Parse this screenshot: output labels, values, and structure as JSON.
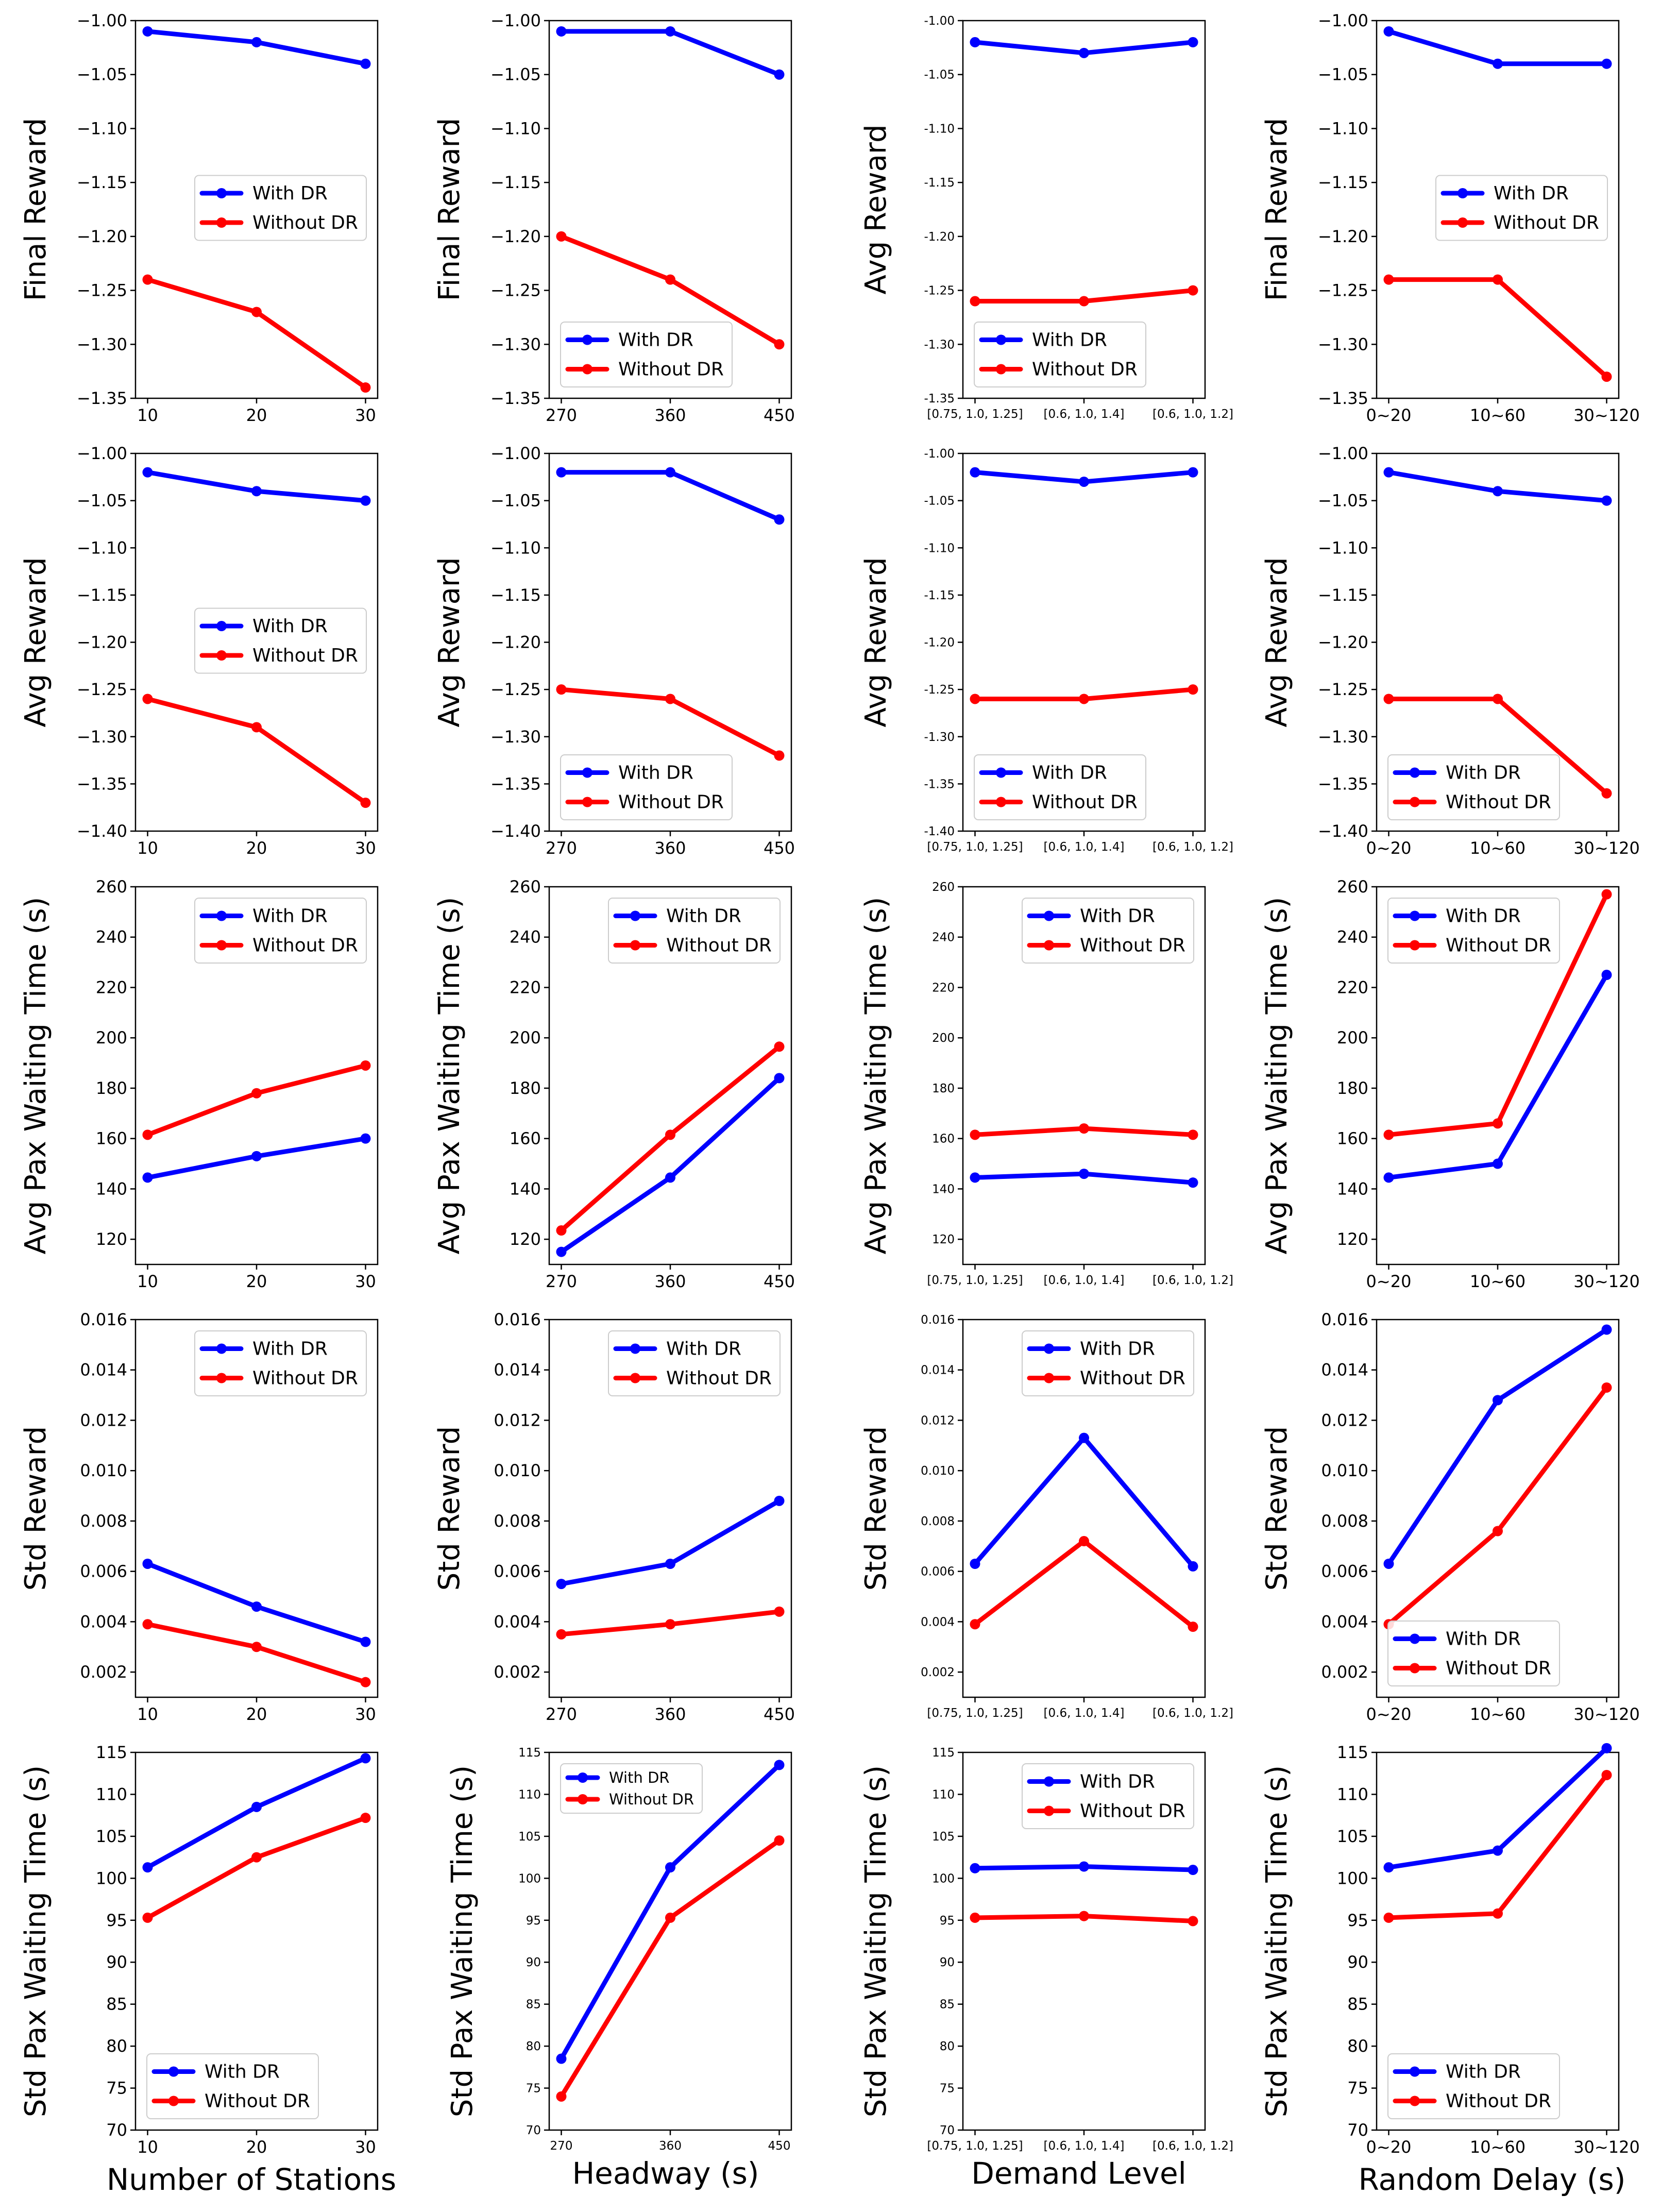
{
  "series_styles": [
    {
      "name": "With DR",
      "color": "#0000ff"
    },
    {
      "name": "Without DR",
      "color": "#ff0000"
    }
  ],
  "x_axes": {
    "stations": {
      "xlabel": "Number of Stations",
      "categories": [
        "10",
        "20",
        "30"
      ]
    },
    "headway": {
      "xlabel": "Headway (s)",
      "categories": [
        "270",
        "360",
        "450"
      ]
    },
    "demand": {
      "xlabel": "Demand Level",
      "categories": [
        "[0.75, 1.0, 1.25]",
        "[0.6, 1.0, 1.4]",
        "[0.6, 1.0, 1.2]"
      ]
    },
    "delay": {
      "xlabel": "Random Delay (s)",
      "categories": [
        "0~20",
        "10~60",
        "30~120"
      ]
    }
  },
  "chart_data": [
    {
      "type": "line",
      "row": 0,
      "col": 0,
      "ylabel": "Final Reward",
      "ylim": [
        -1.35,
        -1.0
      ],
      "yticks": [
        -1.0,
        -1.05,
        -1.1,
        -1.15,
        -1.2,
        -1.25,
        -1.3,
        -1.35
      ],
      "ytick_labels": [
        "−1.00",
        "−1.05",
        "−1.10",
        "−1.15",
        "−1.20",
        "−1.25",
        "−1.30",
        "−1.35"
      ],
      "legend_loc": "center-right",
      "categories": [
        "10",
        "20",
        "30"
      ],
      "series": [
        {
          "name": "With DR",
          "values": [
            -1.01,
            -1.02,
            -1.04
          ]
        },
        {
          "name": "Without DR",
          "values": [
            -1.24,
            -1.27,
            -1.34
          ]
        }
      ]
    },
    {
      "type": "line",
      "row": 0,
      "col": 1,
      "ylabel": "Final Reward",
      "ylim": [
        -1.35,
        -1.0
      ],
      "yticks": [
        -1.0,
        -1.05,
        -1.1,
        -1.15,
        -1.2,
        -1.25,
        -1.3,
        -1.35
      ],
      "ytick_labels": [
        "−1.00",
        "−1.05",
        "−1.10",
        "−1.15",
        "−1.20",
        "−1.25",
        "−1.30",
        "−1.35"
      ],
      "legend_loc": "lower-left",
      "categories": [
        "270",
        "360",
        "450"
      ],
      "series": [
        {
          "name": "With DR",
          "values": [
            -1.01,
            -1.01,
            -1.05
          ]
        },
        {
          "name": "Without DR",
          "values": [
            -1.2,
            -1.24,
            -1.3
          ]
        }
      ]
    },
    {
      "type": "line",
      "row": 0,
      "col": 2,
      "ylabel": "Avg Reward",
      "ylim": [
        -1.35,
        -1.0
      ],
      "yticks": [
        -1.0,
        -1.05,
        -1.1,
        -1.15,
        -1.2,
        -1.25,
        -1.3,
        -1.35
      ],
      "ytick_labels": [
        "-1.00",
        "-1.05",
        "-1.10",
        "-1.15",
        "-1.20",
        "-1.25",
        "-1.30",
        "-1.35"
      ],
      "small_ticks": true,
      "legend_loc": "lower-left",
      "categories": [
        "[0.75, 1.0, 1.25]",
        "[0.6, 1.0, 1.4]",
        "[0.6, 1.0, 1.2]"
      ],
      "series": [
        {
          "name": "With DR",
          "values": [
            -1.02,
            -1.03,
            -1.02
          ]
        },
        {
          "name": "Without DR",
          "values": [
            -1.26,
            -1.26,
            -1.25
          ]
        }
      ]
    },
    {
      "type": "line",
      "row": 0,
      "col": 3,
      "ylabel": "Final Reward",
      "ylim": [
        -1.35,
        -1.0
      ],
      "yticks": [
        -1.0,
        -1.05,
        -1.1,
        -1.15,
        -1.2,
        -1.25,
        -1.3,
        -1.35
      ],
      "ytick_labels": [
        "−1.00",
        "−1.05",
        "−1.10",
        "−1.15",
        "−1.20",
        "−1.25",
        "−1.30",
        "−1.35"
      ],
      "legend_loc": "center-right",
      "categories": [
        "0~20",
        "10~60",
        "30~120"
      ],
      "series": [
        {
          "name": "With DR",
          "values": [
            -1.01,
            -1.04,
            -1.04
          ]
        },
        {
          "name": "Without DR",
          "values": [
            -1.24,
            -1.24,
            -1.33
          ]
        }
      ]
    },
    {
      "type": "line",
      "row": 1,
      "col": 0,
      "ylabel": "Avg Reward",
      "ylim": [
        -1.4,
        -1.0
      ],
      "yticks": [
        -1.0,
        -1.05,
        -1.1,
        -1.15,
        -1.2,
        -1.25,
        -1.3,
        -1.35,
        -1.4
      ],
      "ytick_labels": [
        "−1.00",
        "−1.05",
        "−1.10",
        "−1.15",
        "−1.20",
        "−1.25",
        "−1.30",
        "−1.35",
        "−1.40"
      ],
      "legend_loc": "center-right",
      "categories": [
        "10",
        "20",
        "30"
      ],
      "series": [
        {
          "name": "With DR",
          "values": [
            -1.02,
            -1.04,
            -1.05
          ]
        },
        {
          "name": "Without DR",
          "values": [
            -1.26,
            -1.29,
            -1.37
          ]
        }
      ]
    },
    {
      "type": "line",
      "row": 1,
      "col": 1,
      "ylabel": "Avg Reward",
      "ylim": [
        -1.4,
        -1.0
      ],
      "yticks": [
        -1.0,
        -1.05,
        -1.1,
        -1.15,
        -1.2,
        -1.25,
        -1.3,
        -1.35,
        -1.4
      ],
      "ytick_labels": [
        "−1.00",
        "−1.05",
        "−1.10",
        "−1.15",
        "−1.20",
        "−1.25",
        "−1.30",
        "−1.35",
        "−1.40"
      ],
      "legend_loc": "lower-left",
      "categories": [
        "270",
        "360",
        "450"
      ],
      "series": [
        {
          "name": "With DR",
          "values": [
            -1.02,
            -1.02,
            -1.07
          ]
        },
        {
          "name": "Without DR",
          "values": [
            -1.25,
            -1.26,
            -1.32
          ]
        }
      ]
    },
    {
      "type": "line",
      "row": 1,
      "col": 2,
      "ylabel": "Avg Reward",
      "ylim": [
        -1.4,
        -1.0
      ],
      "yticks": [
        -1.0,
        -1.05,
        -1.1,
        -1.15,
        -1.2,
        -1.25,
        -1.3,
        -1.35,
        -1.4
      ],
      "ytick_labels": [
        "-1.00",
        "-1.05",
        "-1.10",
        "-1.15",
        "-1.20",
        "-1.25",
        "-1.30",
        "-1.35",
        "-1.40"
      ],
      "small_ticks": true,
      "legend_loc": "lower-left",
      "categories": [
        "[0.75, 1.0, 1.25]",
        "[0.6, 1.0, 1.4]",
        "[0.6, 1.0, 1.2]"
      ],
      "series": [
        {
          "name": "With DR",
          "values": [
            -1.02,
            -1.03,
            -1.02
          ]
        },
        {
          "name": "Without DR",
          "values": [
            -1.26,
            -1.26,
            -1.25
          ]
        }
      ]
    },
    {
      "type": "line",
      "row": 1,
      "col": 3,
      "ylabel": "Avg Reward",
      "ylim": [
        -1.4,
        -1.0
      ],
      "yticks": [
        -1.0,
        -1.05,
        -1.1,
        -1.15,
        -1.2,
        -1.25,
        -1.3,
        -1.35,
        -1.4
      ],
      "ytick_labels": [
        "−1.00",
        "−1.05",
        "−1.10",
        "−1.15",
        "−1.20",
        "−1.25",
        "−1.30",
        "−1.35",
        "−1.40"
      ],
      "legend_loc": "lower-left",
      "categories": [
        "0~20",
        "10~60",
        "30~120"
      ],
      "series": [
        {
          "name": "With DR",
          "values": [
            -1.02,
            -1.04,
            -1.05
          ]
        },
        {
          "name": "Without DR",
          "values": [
            -1.26,
            -1.26,
            -1.36
          ]
        }
      ]
    },
    {
      "type": "line",
      "row": 2,
      "col": 0,
      "ylabel": "Avg Pax Waiting Time (s)",
      "ylim": [
        110,
        260
      ],
      "yticks": [
        120,
        140,
        160,
        180,
        200,
        220,
        240,
        260
      ],
      "ytick_labels": [
        "120",
        "140",
        "160",
        "180",
        "200",
        "220",
        "240",
        "260"
      ],
      "legend_loc": "upper-right",
      "categories": [
        "10",
        "20",
        "30"
      ],
      "series": [
        {
          "name": "With DR",
          "values": [
            144.5,
            153,
            160
          ]
        },
        {
          "name": "Without DR",
          "values": [
            161.5,
            178,
            189
          ]
        }
      ]
    },
    {
      "type": "line",
      "row": 2,
      "col": 1,
      "ylabel": "Avg Pax Waiting Time (s)",
      "ylim": [
        110,
        260
      ],
      "yticks": [
        120,
        140,
        160,
        180,
        200,
        220,
        240,
        260
      ],
      "ytick_labels": [
        "120",
        "140",
        "160",
        "180",
        "200",
        "220",
        "240",
        "260"
      ],
      "legend_loc": "upper-right",
      "categories": [
        "270",
        "360",
        "450"
      ],
      "series": [
        {
          "name": "With DR",
          "values": [
            115,
            144.5,
            184
          ]
        },
        {
          "name": "Without DR",
          "values": [
            123.5,
            161.5,
            196.5
          ]
        }
      ]
    },
    {
      "type": "line",
      "row": 2,
      "col": 2,
      "ylabel": "Avg Pax Waiting Time (s)",
      "ylim": [
        110,
        260
      ],
      "yticks": [
        120,
        140,
        160,
        180,
        200,
        220,
        240,
        260
      ],
      "ytick_labels": [
        "120",
        "140",
        "160",
        "180",
        "200",
        "220",
        "240",
        "260"
      ],
      "small_ticks": true,
      "legend_loc": "upper-right",
      "categories": [
        "[0.75, 1.0, 1.25]",
        "[0.6, 1.0, 1.4]",
        "[0.6, 1.0, 1.2]"
      ],
      "series": [
        {
          "name": "With DR",
          "values": [
            144.5,
            146,
            142.5
          ]
        },
        {
          "name": "Without DR",
          "values": [
            161.5,
            164,
            161.5
          ]
        }
      ]
    },
    {
      "type": "line",
      "row": 2,
      "col": 3,
      "ylabel": "Avg Pax Waiting Time (s)",
      "ylim": [
        110,
        260
      ],
      "yticks": [
        120,
        140,
        160,
        180,
        200,
        220,
        240,
        260
      ],
      "ytick_labels": [
        "120",
        "140",
        "160",
        "180",
        "200",
        "220",
        "240",
        "260"
      ],
      "legend_loc": "upper-left",
      "categories": [
        "0~20",
        "10~60",
        "30~120"
      ],
      "series": [
        {
          "name": "With DR",
          "values": [
            144.5,
            150,
            225
          ]
        },
        {
          "name": "Without DR",
          "values": [
            161.5,
            166,
            257
          ]
        }
      ]
    },
    {
      "type": "line",
      "row": 3,
      "col": 0,
      "ylabel": "Std Reward",
      "ylim": [
        0.001,
        0.016
      ],
      "yticks": [
        0.002,
        0.004,
        0.006,
        0.008,
        0.01,
        0.012,
        0.014,
        0.016
      ],
      "ytick_labels": [
        "0.002",
        "0.004",
        "0.006",
        "0.008",
        "0.010",
        "0.012",
        "0.014",
        "0.016"
      ],
      "legend_loc": "upper-right",
      "categories": [
        "10",
        "20",
        "30"
      ],
      "series": [
        {
          "name": "With DR",
          "values": [
            0.0063,
            0.0046,
            0.0032
          ]
        },
        {
          "name": "Without DR",
          "values": [
            0.0039,
            0.003,
            0.0016
          ]
        }
      ]
    },
    {
      "type": "line",
      "row": 3,
      "col": 1,
      "ylabel": "Std Reward",
      "ylim": [
        0.001,
        0.016
      ],
      "yticks": [
        0.002,
        0.004,
        0.006,
        0.008,
        0.01,
        0.012,
        0.014,
        0.016
      ],
      "ytick_labels": [
        "0.002",
        "0.004",
        "0.006",
        "0.008",
        "0.010",
        "0.012",
        "0.014",
        "0.016"
      ],
      "legend_loc": "upper-right",
      "categories": [
        "270",
        "360",
        "450"
      ],
      "series": [
        {
          "name": "With DR",
          "values": [
            0.0055,
            0.0063,
            0.0088
          ]
        },
        {
          "name": "Without DR",
          "values": [
            0.0035,
            0.0039,
            0.0044
          ]
        }
      ]
    },
    {
      "type": "line",
      "row": 3,
      "col": 2,
      "ylabel": "Std Reward",
      "ylim": [
        0.001,
        0.016
      ],
      "yticks": [
        0.002,
        0.004,
        0.006,
        0.008,
        0.01,
        0.012,
        0.014,
        0.016
      ],
      "ytick_labels": [
        "0.002",
        "0.004",
        "0.006",
        "0.008",
        "0.010",
        "0.012",
        "0.014",
        "0.016"
      ],
      "small_ticks": true,
      "legend_loc": "upper-right",
      "categories": [
        "[0.75, 1.0, 1.25]",
        "[0.6, 1.0, 1.4]",
        "[0.6, 1.0, 1.2]"
      ],
      "series": [
        {
          "name": "With DR",
          "values": [
            0.0063,
            0.0113,
            0.0062
          ]
        },
        {
          "name": "Without DR",
          "values": [
            0.0039,
            0.0072,
            0.0038
          ]
        }
      ]
    },
    {
      "type": "line",
      "row": 3,
      "col": 3,
      "ylabel": "Std Reward",
      "ylim": [
        0.001,
        0.016
      ],
      "yticks": [
        0.002,
        0.004,
        0.006,
        0.008,
        0.01,
        0.012,
        0.014,
        0.016
      ],
      "ytick_labels": [
        "0.002",
        "0.004",
        "0.006",
        "0.008",
        "0.010",
        "0.012",
        "0.014",
        "0.016"
      ],
      "legend_loc": "lower-left",
      "categories": [
        "0~20",
        "10~60",
        "30~120"
      ],
      "series": [
        {
          "name": "With DR",
          "values": [
            0.0063,
            0.0128,
            0.0156
          ]
        },
        {
          "name": "Without DR",
          "values": [
            0.0039,
            0.0076,
            0.0133
          ]
        }
      ]
    },
    {
      "type": "line",
      "row": 4,
      "col": 0,
      "ylabel": "Std Pax Waiting Time (s)",
      "ylim": [
        70,
        115
      ],
      "yticks": [
        70,
        75,
        80,
        85,
        90,
        95,
        100,
        105,
        110,
        115
      ],
      "ytick_labels": [
        "70",
        "75",
        "80",
        "85",
        "90",
        "95",
        "100",
        "105",
        "110",
        "115"
      ],
      "legend_loc": "lower-left",
      "categories": [
        "10",
        "20",
        "30"
      ],
      "series": [
        {
          "name": "With DR",
          "values": [
            101.3,
            108.5,
            114.3
          ]
        },
        {
          "name": "Without DR",
          "values": [
            95.3,
            102.5,
            107.2
          ]
        }
      ]
    },
    {
      "type": "line",
      "row": 4,
      "col": 1,
      "ylabel": "Std Pax Waiting Time (s)",
      "ylim": [
        70,
        115
      ],
      "yticks": [
        70,
        75,
        80,
        85,
        90,
        95,
        100,
        105,
        110,
        115
      ],
      "ytick_labels": [
        "70",
        "75",
        "80",
        "85",
        "90",
        "95",
        "100",
        "105",
        "110",
        "115"
      ],
      "small_ticks": true,
      "small_legend": true,
      "legend_loc": "upper-left",
      "categories": [
        "270",
        "360",
        "450"
      ],
      "series": [
        {
          "name": "With DR",
          "values": [
            78.5,
            101.3,
            113.5
          ]
        },
        {
          "name": "Without DR",
          "values": [
            74,
            95.3,
            104.5
          ]
        }
      ]
    },
    {
      "type": "line",
      "row": 4,
      "col": 2,
      "ylabel": "Std Pax Waiting Time (s)",
      "ylim": [
        70,
        115
      ],
      "yticks": [
        70,
        75,
        80,
        85,
        90,
        95,
        100,
        105,
        110,
        115
      ],
      "ytick_labels": [
        "70",
        "75",
        "80",
        "85",
        "90",
        "95",
        "100",
        "105",
        "110",
        "115"
      ],
      "small_ticks": true,
      "legend_loc": "upper-right",
      "categories": [
        "[0.75, 1.0, 1.25]",
        "[0.6, 1.0, 1.4]",
        "[0.6, 1.0, 1.2]"
      ],
      "series": [
        {
          "name": "With DR",
          "values": [
            101.2,
            101.4,
            101
          ]
        },
        {
          "name": "Without DR",
          "values": [
            95.3,
            95.5,
            94.9
          ]
        }
      ]
    },
    {
      "type": "line",
      "row": 4,
      "col": 3,
      "ylabel": "Std Pax Waiting Time (s)",
      "ylim": [
        70,
        115
      ],
      "yticks": [
        70,
        75,
        80,
        85,
        90,
        95,
        100,
        105,
        110,
        115
      ],
      "ytick_labels": [
        "70",
        "75",
        "80",
        "85",
        "90",
        "95",
        "100",
        "105",
        "110",
        "115"
      ],
      "legend_loc": "lower-left",
      "categories": [
        "0~20",
        "10~60",
        "30~120"
      ],
      "series": [
        {
          "name": "With DR",
          "values": [
            101.3,
            103.3,
            115.5
          ]
        },
        {
          "name": "Without DR",
          "values": [
            95.3,
            95.8,
            112.3
          ]
        }
      ]
    }
  ]
}
